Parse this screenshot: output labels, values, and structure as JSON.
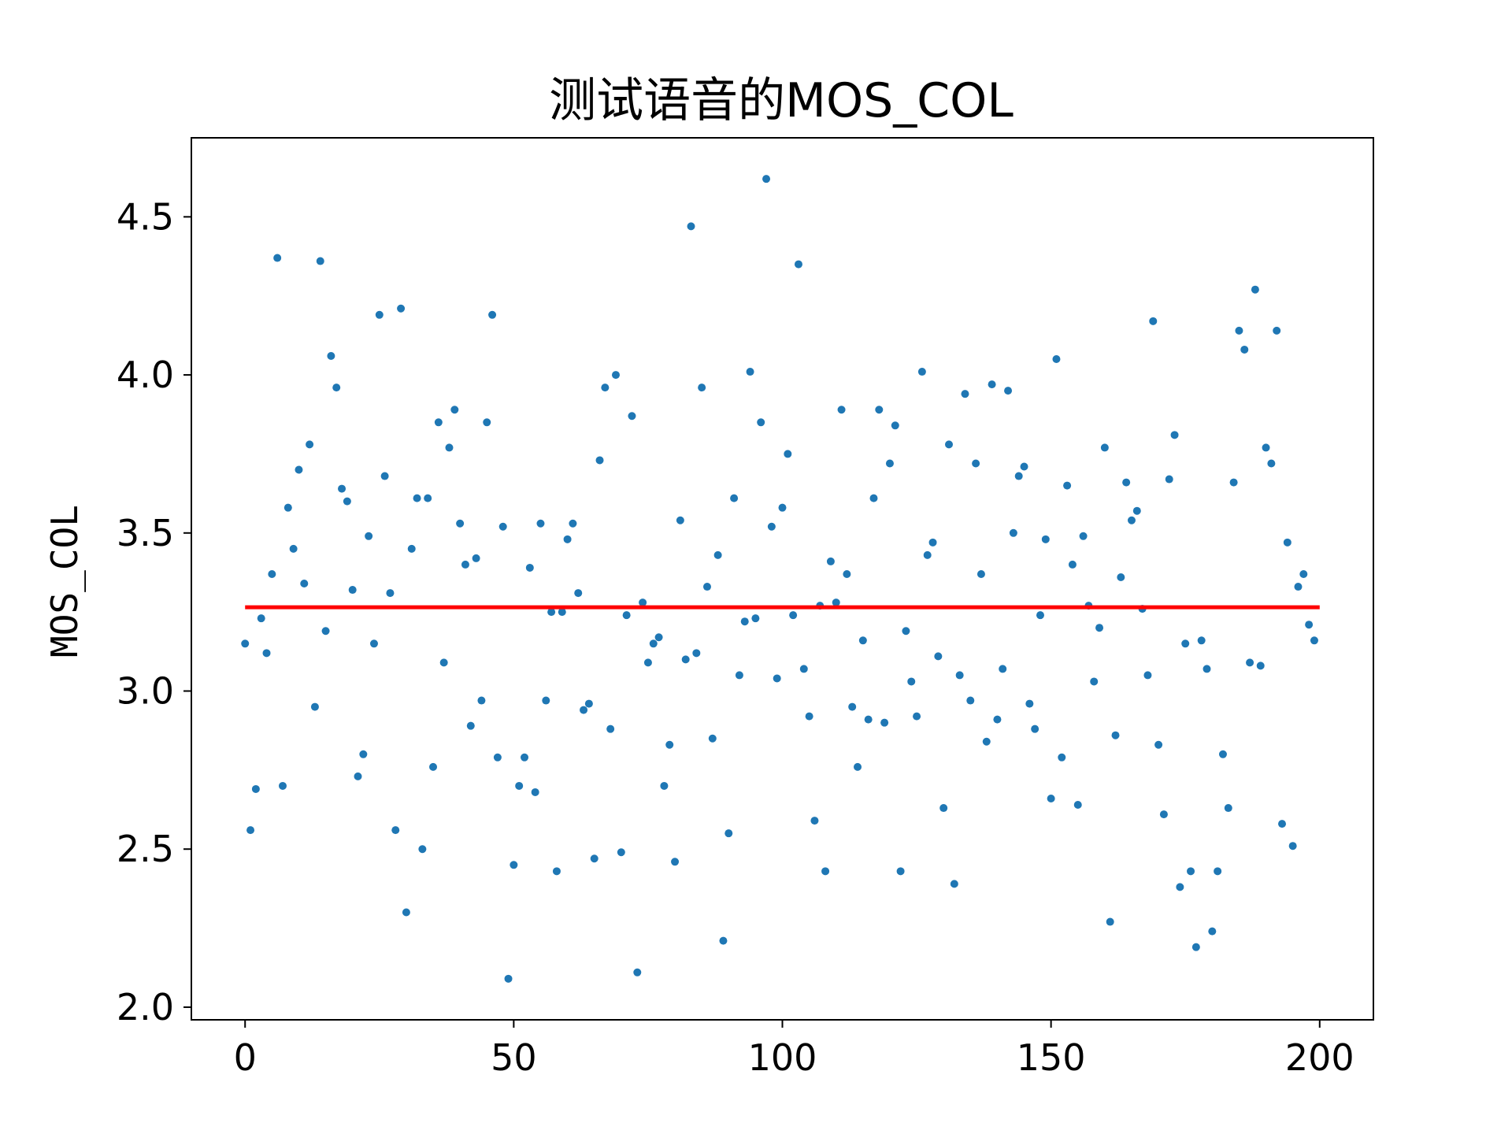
{
  "chart_data": {
    "type": "scatter",
    "title": "测试语音的MOS_COL",
    "xlabel": "",
    "ylabel": "MOS_COL",
    "xlim": [
      -10,
      210
    ],
    "ylim": [
      1.96,
      4.75
    ],
    "xticks": [
      0,
      50,
      100,
      150,
      200
    ],
    "yticks": [
      2.0,
      2.5,
      3.0,
      3.5,
      4.0,
      4.5
    ],
    "xtick_labels": [
      "0",
      "50",
      "100",
      "150",
      "200"
    ],
    "ytick_labels": [
      "2.0",
      "2.5",
      "3.0",
      "3.5",
      "4.0",
      "4.5"
    ],
    "grid": false,
    "legend": "none",
    "series": [
      {
        "kind": "scatter",
        "color": "#1f77b4",
        "x": [
          0,
          1,
          2,
          3,
          4,
          5,
          6,
          7,
          8,
          9,
          10,
          11,
          12,
          13,
          14,
          15,
          16,
          17,
          18,
          19,
          20,
          21,
          22,
          23,
          24,
          25,
          26,
          27,
          28,
          29,
          30,
          31,
          32,
          33,
          34,
          35,
          36,
          37,
          38,
          39,
          40,
          41,
          42,
          43,
          44,
          45,
          46,
          47,
          48,
          49,
          50,
          51,
          52,
          53,
          54,
          55,
          56,
          57,
          58,
          59,
          60,
          61,
          62,
          63,
          64,
          65,
          66,
          67,
          68,
          69,
          70,
          71,
          72,
          73,
          74,
          75,
          76,
          77,
          78,
          79,
          80,
          81,
          82,
          83,
          84,
          85,
          86,
          87,
          88,
          89,
          90,
          91,
          92,
          93,
          94,
          95,
          96,
          97,
          98,
          99,
          100,
          101,
          102,
          103,
          104,
          105,
          106,
          107,
          108,
          109,
          110,
          111,
          112,
          113,
          114,
          115,
          116,
          117,
          118,
          119,
          120,
          121,
          122,
          123,
          124,
          125,
          126,
          127,
          128,
          129,
          130,
          131,
          132,
          133,
          134,
          135,
          136,
          137,
          138,
          139,
          140,
          141,
          142,
          143,
          144,
          145,
          146,
          147,
          148,
          149,
          150,
          151,
          152,
          153,
          154,
          155,
          156,
          157,
          158,
          159,
          160,
          161,
          162,
          163,
          164,
          165,
          166,
          167,
          168,
          169,
          170,
          171,
          172,
          173,
          174,
          175,
          176,
          177,
          178,
          179,
          180,
          181,
          182,
          183,
          184,
          185,
          186,
          187,
          188,
          189,
          190,
          191,
          192,
          193,
          194,
          195,
          196,
          197,
          198,
          199
        ],
        "y": [
          3.15,
          2.56,
          2.69,
          3.23,
          3.12,
          3.37,
          4.37,
          2.7,
          3.58,
          3.45,
          3.7,
          3.34,
          3.78,
          2.95,
          4.36,
          3.19,
          4.06,
          3.96,
          3.64,
          3.6,
          3.32,
          2.73,
          2.8,
          3.49,
          3.15,
          4.19,
          3.68,
          3.31,
          2.56,
          4.21,
          2.3,
          3.45,
          3.61,
          2.5,
          3.61,
          2.76,
          3.85,
          3.09,
          3.77,
          3.89,
          3.53,
          3.4,
          2.89,
          3.42,
          2.97,
          3.85,
          4.19,
          2.79,
          3.52,
          2.09,
          2.45,
          2.7,
          2.79,
          3.39,
          2.68,
          3.53,
          2.97,
          3.25,
          2.43,
          3.25,
          3.48,
          3.53,
          3.31,
          2.94,
          2.96,
          2.47,
          3.73,
          3.96,
          2.88,
          4.0,
          2.49,
          3.24,
          3.87,
          2.11,
          3.28,
          3.09,
          3.15,
          3.17,
          2.7,
          2.83,
          2.46,
          3.54,
          3.1,
          4.47,
          3.12,
          3.96,
          3.33,
          2.85,
          3.43,
          2.21,
          2.55,
          3.61,
          3.05,
          3.22,
          4.01,
          3.23,
          3.85,
          4.62,
          3.52,
          3.04,
          3.58,
          3.75,
          3.24,
          4.35,
          3.07,
          2.92,
          2.59,
          3.27,
          2.43,
          3.41,
          3.28,
          3.89,
          3.37,
          2.95,
          2.76,
          3.16,
          2.91,
          3.61,
          3.89,
          2.9,
          3.72,
          3.84,
          2.43,
          3.19,
          3.03,
          2.92,
          4.01,
          3.43,
          3.47,
          3.11,
          2.63,
          3.78,
          2.39,
          3.05,
          3.94,
          2.97,
          3.72,
          3.37,
          2.84,
          3.97,
          2.91,
          3.07,
          3.95,
          3.5,
          3.68,
          3.71,
          2.96,
          2.88,
          3.24,
          3.48,
          2.66,
          4.05,
          2.79,
          3.65,
          3.4,
          2.64,
          3.49,
          3.27,
          3.03,
          3.2,
          3.77,
          2.27,
          2.86,
          3.36,
          3.66,
          3.54,
          3.57,
          3.26,
          3.05,
          4.17,
          2.83,
          2.61,
          3.67,
          3.81,
          2.38,
          3.15,
          2.43,
          2.19,
          3.16,
          3.07,
          2.24,
          2.43,
          2.8,
          2.63,
          3.66,
          4.14,
          4.08,
          3.09,
          4.27,
          3.08,
          3.77,
          3.72,
          4.14,
          2.58,
          3.47,
          2.51,
          3.33,
          3.37,
          3.21,
          3.16
        ]
      },
      {
        "kind": "line",
        "color": "#ff0000",
        "x": [
          0,
          200
        ],
        "y": [
          3.265,
          3.265
        ]
      }
    ]
  }
}
